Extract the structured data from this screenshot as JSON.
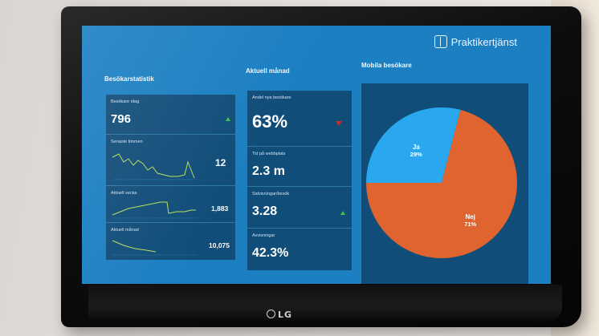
{
  "brand": {
    "name": "Praktikertjänst"
  },
  "sections": {
    "visitor_stats": "Besökarstatistik",
    "current_month": "Aktuell månad",
    "mobile_visitors": "Mobila besökare"
  },
  "visitor_stats": {
    "today_label": "Besökare idag",
    "today_value": "796",
    "last_hour_label": "Senaste timmen",
    "last_hour_value": "12",
    "current_week_label": "Aktuell vecka",
    "current_week_value": "1,883",
    "current_month_label": "Aktuell månad",
    "current_month_value": "10,075"
  },
  "current_month": {
    "new_visitors_label": "Andel nya besökare",
    "new_visitors_value": "63%",
    "time_on_site_label": "Tid på webbplats",
    "time_on_site_value": "2.3 m",
    "pages_per_visit_label": "Sidvisningar/besök",
    "pages_per_visit_value": "3.28",
    "bounce_label": "Avvisningar",
    "bounce_value": "42.3%"
  },
  "colors": {
    "screen_bg": "#1b7fc2",
    "panel_bg": "#114d79",
    "trend_up": "#3cc24a",
    "trend_down": "#c82b2b",
    "sparkline": "#b8e05a",
    "pie_ja": "#29a8f0",
    "pie_nej": "#e0642f"
  },
  "chart_data": {
    "type": "pie",
    "title": "Mobila besökare",
    "slices": [
      {
        "label": "Ja",
        "value": 29,
        "display": "29%",
        "color": "#29a8f0"
      },
      {
        "label": "Nej",
        "value": 71,
        "display": "71%",
        "color": "#e0642f"
      }
    ]
  }
}
